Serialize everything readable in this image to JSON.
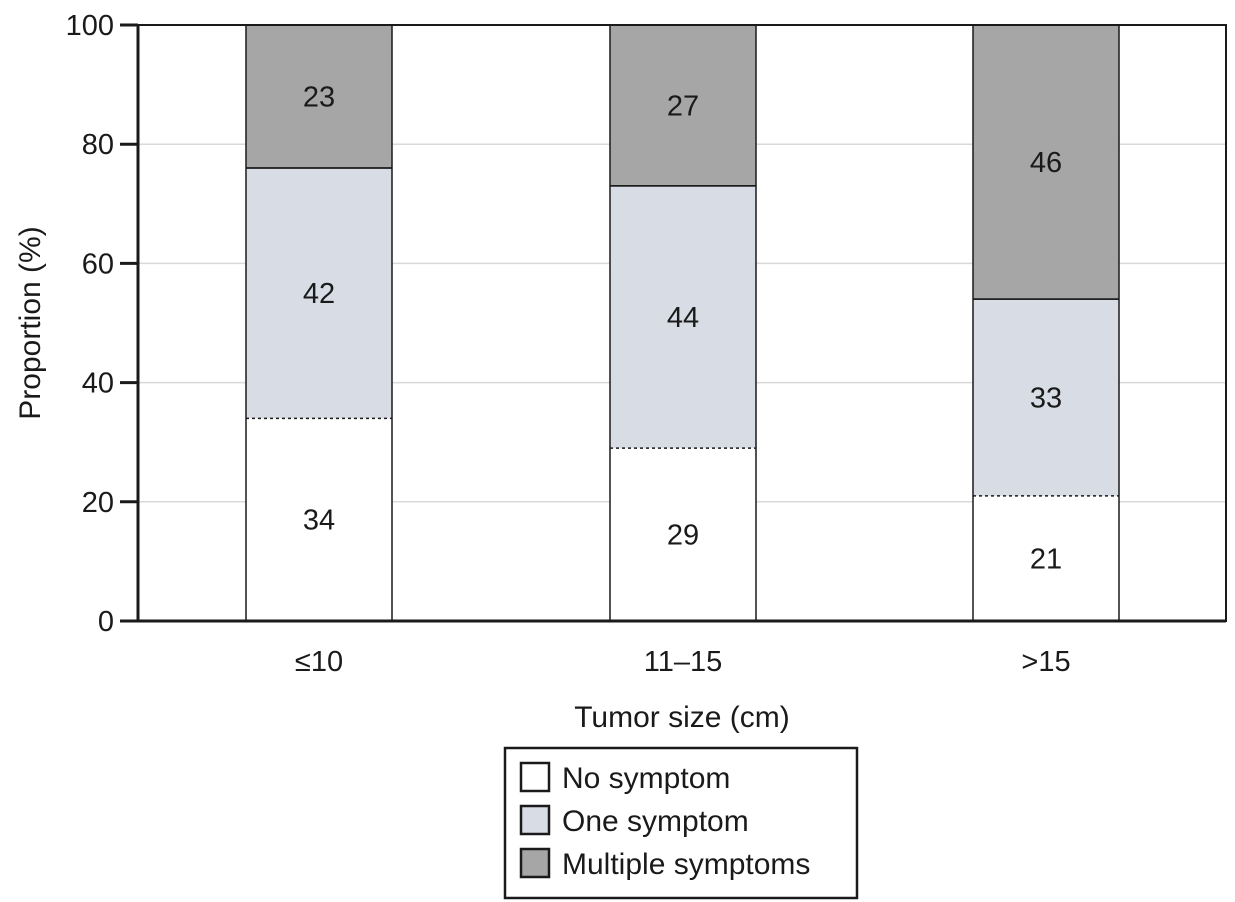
{
  "chart_data": {
    "type": "bar",
    "stacked": true,
    "xlabel": "Tumor size (cm)",
    "ylabel": "Proportion (%)",
    "ylim": [
      0,
      100
    ],
    "yticks": [
      0,
      20,
      40,
      60,
      80,
      100
    ],
    "ytick_labels": [
      "0",
      "20",
      "40",
      "60",
      "80",
      "100"
    ],
    "grid": true,
    "categories": [
      "≤10",
      "11–15",
      ">15"
    ],
    "series": [
      {
        "name": "No symptom",
        "values": [
          34,
          29,
          21
        ],
        "color": "#ffffff"
      },
      {
        "name": "One symptom",
        "values": [
          42,
          44,
          33
        ],
        "color": "#d8dde5"
      },
      {
        "name": "Multiple symptoms",
        "values": [
          23,
          27,
          46
        ],
        "color": "#a6a6a6"
      }
    ],
    "legend_position": "bottom-center"
  }
}
